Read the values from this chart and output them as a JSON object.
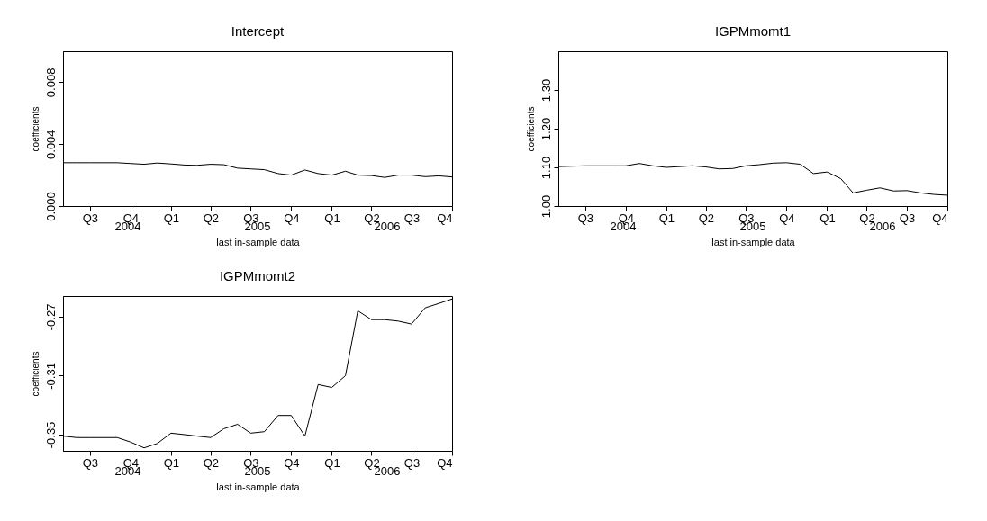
{
  "chart_data": [
    {
      "type": "line",
      "title": "Intercept",
      "xlabel": "last in-sample data",
      "ylabel": "coefficients",
      "grid": false,
      "x": [
        "2004-05",
        "2004-06",
        "2004-07",
        "2004-08",
        "2004-09",
        "2004-10",
        "2004-11",
        "2004-12",
        "2005-01",
        "2005-02",
        "2005-03",
        "2005-04",
        "2005-05",
        "2005-06",
        "2005-07",
        "2005-08",
        "2005-09",
        "2005-10",
        "2005-11",
        "2005-12",
        "2006-01",
        "2006-02",
        "2006-03",
        "2006-04",
        "2006-05",
        "2006-06",
        "2006-07",
        "2006-08",
        "2006-09",
        "2006-10"
      ],
      "series": [
        {
          "color": "#000000",
          "values": [
            0.0028,
            0.0028,
            0.0028,
            0.0028,
            0.0028,
            0.00275,
            0.0027,
            0.00278,
            0.00272,
            0.00265,
            0.00263,
            0.0027,
            0.00267,
            0.00245,
            0.0024,
            0.00235,
            0.0021,
            0.002,
            0.00233,
            0.0021,
            0.002,
            0.00225,
            0.002,
            0.00197,
            0.00185,
            0.002,
            0.002,
            0.0019,
            0.00195,
            0.00188
          ]
        }
      ],
      "xlim": [
        "2004-05",
        "2006-10"
      ],
      "xticks": [
        {
          "value": "2004-07",
          "label": "Q3"
        },
        {
          "value": "2004-10",
          "label": "Q4"
        },
        {
          "value": "2005-01",
          "label": "Q1"
        },
        {
          "value": "2005-04",
          "label": "Q2"
        },
        {
          "value": "2005-07",
          "label": "Q3"
        },
        {
          "value": "2005-10",
          "label": "Q4"
        },
        {
          "value": "2006-01",
          "label": "Q1"
        },
        {
          "value": "2006-04",
          "label": "Q2"
        },
        {
          "value": "2006-07",
          "label": "Q3"
        },
        {
          "value": "2006-10",
          "label": "Q4"
        }
      ],
      "annotations": [
        "2004",
        "2005",
        "2006"
      ],
      "ylim": [
        0,
        0.01
      ],
      "yticks": [
        {
          "value": 0,
          "label": "0.000"
        },
        0.004,
        0.008
      ]
    },
    {
      "type": "line",
      "title": "IGPMmomt1",
      "xlabel": "last in-sample data",
      "ylabel": "coefficients",
      "grid": false,
      "x": [
        "2004-05",
        "2004-06",
        "2004-07",
        "2004-08",
        "2004-09",
        "2004-10",
        "2004-11",
        "2004-12",
        "2005-01",
        "2005-02",
        "2005-03",
        "2005-04",
        "2005-05",
        "2005-06",
        "2005-07",
        "2005-08",
        "2005-09",
        "2005-10",
        "2005-11",
        "2005-12",
        "2006-01",
        "2006-02",
        "2006-03",
        "2006-04",
        "2006-05",
        "2006-06",
        "2006-07",
        "2006-08",
        "2006-09",
        "2006-10"
      ],
      "series": [
        {
          "color": "#000000",
          "values": [
            1.102,
            1.103,
            1.104,
            1.104,
            1.104,
            1.104,
            1.11,
            1.104,
            1.1,
            1.102,
            1.104,
            1.101,
            1.096,
            1.097,
            1.104,
            1.107,
            1.111,
            1.112,
            1.108,
            1.084,
            1.088,
            1.071,
            1.034,
            1.041,
            1.047,
            1.039,
            1.04,
            1.034,
            1.03,
            1.028
          ]
        }
      ],
      "xlim": [
        "2004-05",
        "2006-10"
      ],
      "xticks": [
        {
          "value": "2004-07",
          "label": "Q3"
        },
        {
          "value": "2004-10",
          "label": "Q4"
        },
        {
          "value": "2005-01",
          "label": "Q1"
        },
        {
          "value": "2005-04",
          "label": "Q2"
        },
        {
          "value": "2005-07",
          "label": "Q3"
        },
        {
          "value": "2005-10",
          "label": "Q4"
        },
        {
          "value": "2006-01",
          "label": "Q1"
        },
        {
          "value": "2006-04",
          "label": "Q2"
        },
        {
          "value": "2006-07",
          "label": "Q3"
        },
        {
          "value": "2006-10",
          "label": "Q4"
        }
      ],
      "annotations": [
        "2004",
        "2005",
        "2006"
      ],
      "ylim": [
        1,
        1.4
      ],
      "yticks": [
        {
          "value": 1,
          "label": "1.00"
        },
        {
          "value": 1.1,
          "label": "1.10"
        },
        {
          "value": 1.2,
          "label": "1.20"
        },
        {
          "value": 1.3,
          "label": "1.30"
        }
      ]
    },
    {
      "type": "line",
      "title": "IGPMmomt2",
      "xlabel": "last in-sample data",
      "ylabel": "coefficients",
      "grid": false,
      "x": [
        "2004-05",
        "2004-06",
        "2004-07",
        "2004-08",
        "2004-09",
        "2004-10",
        "2004-11",
        "2004-12",
        "2005-01",
        "2005-02",
        "2005-03",
        "2005-04",
        "2005-05",
        "2005-06",
        "2005-07",
        "2005-08",
        "2005-09",
        "2005-10",
        "2005-11",
        "2005-12",
        "2006-01",
        "2006-02",
        "2006-03",
        "2006-04",
        "2006-05",
        "2006-06",
        "2006-07",
        "2006-08",
        "2006-09",
        "2006-10"
      ],
      "series": [
        {
          "color": "#000000",
          "values": [
            -0.351,
            -0.352,
            -0.352,
            -0.352,
            -0.352,
            -0.355,
            -0.359,
            -0.356,
            -0.349,
            -0.35,
            -0.351,
            -0.352,
            -0.346,
            -0.343,
            -0.349,
            -0.348,
            -0.337,
            -0.337,
            -0.351,
            -0.316,
            -0.318,
            -0.31,
            -0.266,
            -0.272,
            -0.272,
            -0.273,
            -0.275,
            -0.264,
            -0.261,
            -0.258
          ]
        }
      ],
      "xlim": [
        "2004-05",
        "2006-10"
      ],
      "xticks": [
        {
          "value": "2004-07",
          "label": "Q3"
        },
        {
          "value": "2004-10",
          "label": "Q4"
        },
        {
          "value": "2005-01",
          "label": "Q1"
        },
        {
          "value": "2005-04",
          "label": "Q2"
        },
        {
          "value": "2005-07",
          "label": "Q3"
        },
        {
          "value": "2005-10",
          "label": "Q4"
        },
        {
          "value": "2006-01",
          "label": "Q1"
        },
        {
          "value": "2006-04",
          "label": "Q2"
        },
        {
          "value": "2006-07",
          "label": "Q3"
        },
        {
          "value": "2006-10",
          "label": "Q4"
        }
      ],
      "annotations": [
        "2004",
        "2005",
        "2006"
      ],
      "ylim": [
        -0.361,
        -0.256
      ],
      "yticks": [
        -0.35,
        -0.31,
        -0.27
      ]
    }
  ]
}
